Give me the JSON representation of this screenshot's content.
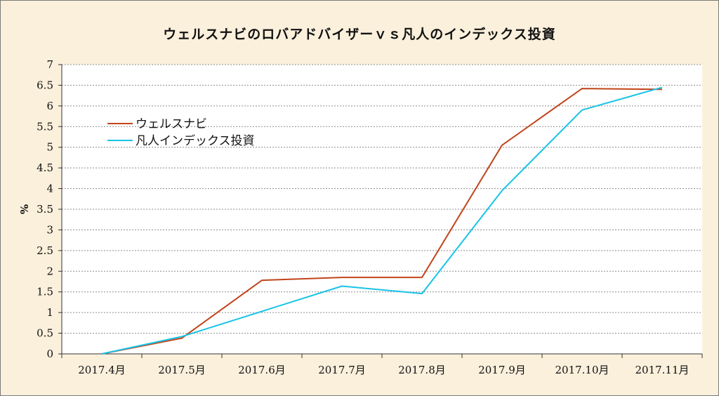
{
  "chart_data": {
    "type": "line",
    "title": "ウェルスナビのロバアドバイザーｖｓ凡人のインデックス投資",
    "ylabel": "%",
    "xlabel": "",
    "categories": [
      "2017.4月",
      "2017.5月",
      "2017.6月",
      "2017.7月",
      "2017.8月",
      "2017.9月",
      "2017.10月",
      "2017.11月"
    ],
    "yticks": [
      "0",
      "0.5",
      "1",
      "1.5",
      "2",
      "2.5",
      "3",
      "3.5",
      "4",
      "4.5",
      "5",
      "5.5",
      "6",
      "6.5",
      "7"
    ],
    "ylim": [
      0,
      7
    ],
    "grid": true,
    "legend_position": "top-left",
    "series": [
      {
        "name": "ウェルスナビ",
        "color": "#c0441a",
        "values": [
          0,
          0.38,
          1.78,
          1.85,
          1.85,
          5.05,
          6.42,
          6.4
        ]
      },
      {
        "name": "凡人インデックス投資",
        "color": "#19c3e6",
        "values": [
          0,
          0.42,
          1.03,
          1.64,
          1.46,
          3.95,
          5.9,
          6.45
        ]
      }
    ]
  }
}
